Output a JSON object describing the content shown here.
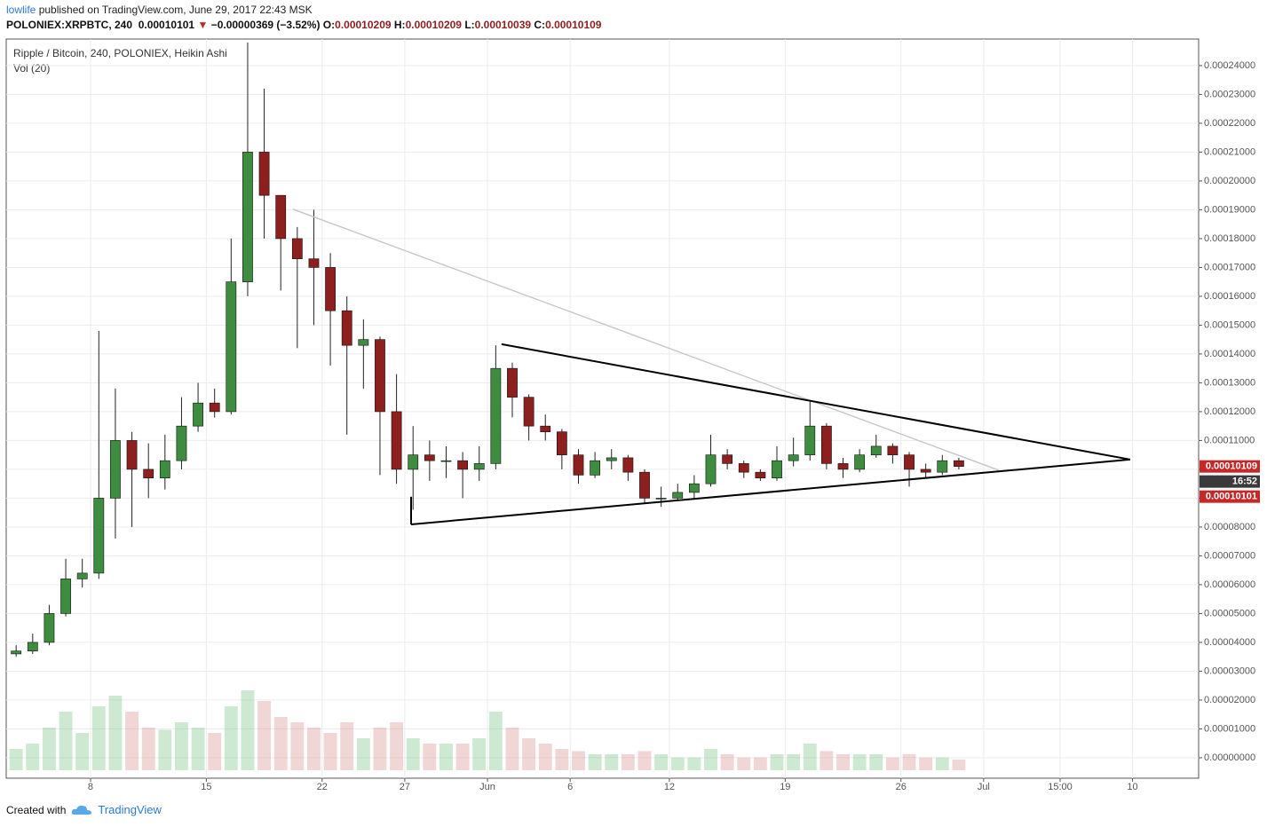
{
  "header": {
    "user": "lowlife",
    "published": "published on TradingView.com, June 29, 2017 22:43 MSK",
    "symbol": "POLONIEX:XRPBTC, 240",
    "last": "0.00010101",
    "direction": "▼",
    "change": "−0.00000369 (−3.52%)",
    "ohlc": [
      {
        "label": "O:",
        "value": "0.00010209"
      },
      {
        "label": "H:",
        "value": "0.00010209"
      },
      {
        "label": "L:",
        "value": "0.00010039"
      },
      {
        "label": "C:",
        "value": "0.00010109"
      }
    ]
  },
  "chart_data": {
    "type": "candlestick",
    "title": "Ripple / Bitcoin, 240, POLONIEX, Heikin Ashi",
    "subtitle": "Vol (20)",
    "x": [
      3,
      4,
      5,
      6,
      7,
      8,
      9,
      10,
      11,
      12,
      13,
      14,
      15,
      16,
      17,
      18,
      19,
      20,
      21,
      22,
      23,
      24,
      25,
      26,
      27,
      28,
      29,
      30,
      31,
      32,
      33,
      34,
      35,
      36,
      37,
      38,
      39,
      40,
      41,
      42,
      43,
      44,
      45,
      46,
      47,
      48,
      49,
      50,
      51,
      52,
      53,
      54,
      55,
      56,
      57,
      58,
      59,
      60
    ],
    "open": [
      3.6e-05,
      3.7e-05,
      4e-05,
      5e-05,
      6.2e-05,
      6.4e-05,
      9e-05,
      0.00011,
      0.0001,
      9.7e-05,
      0.000103,
      0.000115,
      0.000123,
      0.00012,
      0.000165,
      0.00021,
      0.000195,
      0.00018,
      0.000173,
      0.00017,
      0.000155,
      0.000143,
      0.000145,
      0.00012,
      0.0001,
      0.000105,
      0.000103,
      0.000103,
      0.0001,
      0.000102,
      0.000135,
      0.000125,
      0.000115,
      0.000113,
      0.000105,
      9.8e-05,
      0.000103,
      0.000104,
      9.9e-05,
      9e-05,
      9e-05,
      9.2e-05,
      9.5e-05,
      0.000105,
      0.000102,
      9.9e-05,
      9.7e-05,
      0.000103,
      0.000105,
      0.000115,
      0.000102,
      0.0001,
      0.000105,
      0.000108,
      0.000105,
      0.0001,
      9.9e-05,
      0.000103
    ],
    "high": [
      3.9e-05,
      4.3e-05,
      5.3e-05,
      6.9e-05,
      6.9e-05,
      0.000148,
      0.000128,
      0.000113,
      0.000109,
      0.000112,
      0.000125,
      0.00013,
      0.000128,
      0.00018,
      0.000248,
      0.000232,
      0.000195,
      0.000184,
      0.00019,
      0.000175,
      0.00016,
      0.000152,
      0.000146,
      0.000133,
      0.000115,
      0.00011,
      0.000108,
      0.000106,
      0.000108,
      0.000143,
      0.000137,
      0.000126,
      0.000119,
      0.000114,
      0.000107,
      0.000106,
      0.000107,
      0.000105,
      0.0001,
      9.4e-05,
      9.5e-05,
      9.8e-05,
      0.000112,
      0.000107,
      0.000103,
      0.0001,
      0.000108,
      0.000111,
      0.000124,
      0.000116,
      0.000104,
      0.000107,
      0.000112,
      0.000109,
      0.000106,
      0.000102,
      0.000105,
      0.000104
    ],
    "low": [
      3.5e-05,
      3.6e-05,
      3.9e-05,
      4.9e-05,
      5.9e-05,
      6.2e-05,
      7.6e-05,
      8e-05,
      9e-05,
      9.3e-05,
      0.0001,
      0.000113,
      0.000118,
      0.000119,
      0.00016,
      0.00018,
      0.000162,
      0.000142,
      0.00015,
      0.000136,
      0.000112,
      0.000128,
      9.8e-05,
      9.5e-05,
      8.6e-05,
      9.6e-05,
      9.7e-05,
      9e-05,
      9.6e-05,
      0.0001,
      0.000118,
      0.00011,
      0.00011,
      0.0001,
      9.5e-05,
      9.7e-05,
      0.0001,
      9.6e-05,
      8.8e-05,
      8.7e-05,
      8.9e-05,
      9e-05,
      9.4e-05,
      0.0001,
      9.7e-05,
      9.6e-05,
      9.6e-05,
      0.000101,
      0.000103,
      0.0001,
      9.7e-05,
      9.9e-05,
      0.000104,
      0.000102,
      9.4e-05,
      9.7e-05,
      9.8e-05,
      0.0001
    ],
    "close": [
      3.7e-05,
      4e-05,
      5e-05,
      6.2e-05,
      6.4e-05,
      9e-05,
      0.00011,
      0.0001,
      9.7e-05,
      0.000103,
      0.000115,
      0.000123,
      0.00012,
      0.000165,
      0.00021,
      0.000195,
      0.00018,
      0.000173,
      0.00017,
      0.000155,
      0.000143,
      0.000145,
      0.00012,
      0.0001,
      0.000105,
      0.000103,
      0.000103,
      0.0001,
      0.000102,
      0.000135,
      0.000125,
      0.000115,
      0.000113,
      0.000105,
      9.8e-05,
      0.000103,
      0.000104,
      9.9e-05,
      9e-05,
      9e-05,
      9.2e-05,
      9.5e-05,
      0.000105,
      0.000102,
      9.9e-05,
      9.7e-05,
      0.000103,
      0.000105,
      0.000115,
      0.000102,
      0.0001,
      0.000105,
      0.000108,
      0.000105,
      0.0001,
      9.9e-05,
      0.000103,
      0.000101
    ],
    "volume": [
      20,
      25,
      40,
      55,
      35,
      60,
      70,
      55,
      40,
      38,
      45,
      40,
      35,
      60,
      75,
      65,
      50,
      45,
      40,
      35,
      45,
      30,
      40,
      45,
      30,
      25,
      25,
      25,
      30,
      55,
      40,
      30,
      25,
      20,
      18,
      15,
      15,
      15,
      18,
      15,
      12,
      12,
      20,
      15,
      12,
      12,
      15,
      15,
      25,
      18,
      15,
      15,
      15,
      12,
      15,
      12,
      12,
      10
    ],
    "up_color": "#3d8c40",
    "down_color": "#8e1f1f",
    "xlim": [
      2.9,
      75
    ],
    "xticks": [
      8,
      15,
      22,
      27,
      {
        "value": 32,
        "label": "Jun"
      },
      {
        "value": 37,
        "label": "6"
      },
      {
        "value": 43,
        "label": "12"
      },
      {
        "value": 50,
        "label": "19"
      },
      {
        "value": 57,
        "label": "26"
      },
      {
        "value": 62,
        "label": "Jul"
      },
      {
        "value": 66.625,
        "label": "15:00"
      },
      {
        "value": 71,
        "label": "10"
      }
    ],
    "ylim": [
      -7.1e-06,
      0.0002492
    ],
    "yticks": [
      {
        "value": 0,
        "label": "0.00000000"
      },
      {
        "value": 1e-05,
        "label": "0.00001000"
      },
      {
        "value": 2e-05,
        "label": "0.00002000"
      },
      {
        "value": 3e-05,
        "label": "0.00003000"
      },
      {
        "value": 4e-05,
        "label": "0.00004000"
      },
      {
        "value": 5e-05,
        "label": "0.00005000"
      },
      {
        "value": 6e-05,
        "label": "0.00006000"
      },
      {
        "value": 7e-05,
        "label": "0.00007000"
      },
      {
        "value": 8e-05,
        "label": "0.00008000"
      },
      {
        "value": 9e-05,
        "label": "0.00009000"
      },
      {
        "value": 0.0001,
        "label": "0.00010000"
      },
      {
        "value": 0.00011,
        "label": "0.00011000"
      },
      {
        "value": 0.00012,
        "label": "0.00012000"
      },
      {
        "value": 0.00013,
        "label": "0.00013000"
      },
      {
        "value": 0.00014,
        "label": "0.00014000"
      },
      {
        "value": 0.00015,
        "label": "0.00015000"
      },
      {
        "value": 0.00016,
        "label": "0.00016000"
      },
      {
        "value": 0.00017,
        "label": "0.00017000"
      },
      {
        "value": 0.00018,
        "label": "0.00018000"
      },
      {
        "value": 0.00019,
        "label": "0.00019000"
      },
      {
        "value": 0.0002,
        "label": "0.00020000"
      },
      {
        "value": 0.00021,
        "label": "0.00021000"
      },
      {
        "value": 0.00022,
        "label": "0.00022000"
      },
      {
        "value": 0.00023,
        "label": "0.00023000"
      },
      {
        "value": 0.00024,
        "label": "0.00024000"
      }
    ],
    "grid": true,
    "price_tags": [
      {
        "label": "0.00010109",
        "color": "#c62828"
      },
      {
        "label": "16:52",
        "color": "#3a3a3a"
      },
      {
        "label": "0.00010101",
        "color": "#c62828"
      }
    ],
    "drawings": [
      {
        "color": "#c8c8c8",
        "x": [
          20.24,
          62.91
        ],
        "y": [
          0.0001902,
          9.97e-05
        ]
      },
      {
        "color": "#000000",
        "x": [
          32.85,
          70.86
        ],
        "y": [
          0.0001434,
          0.0001034
        ]
      },
      {
        "color": "#000000",
        "x": [
          27.38,
          70.86
        ],
        "y": [
          8.09e-05,
          0.0001034
        ]
      },
      {
        "color": "#000000",
        "x": [
          27.38,
          27.38
        ],
        "y": [
          9.05e-05,
          8.09e-05
        ]
      }
    ]
  },
  "footer": {
    "created": "Created with",
    "brand": "TradingView"
  }
}
